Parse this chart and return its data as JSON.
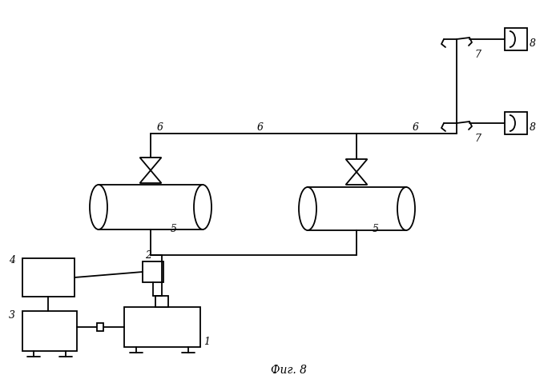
{
  "title": "Фиг. 8",
  "bg_color": "#ffffff",
  "line_color": "#000000",
  "line_width": 1.3,
  "fig_width": 6.99,
  "fig_height": 4.85,
  "dpi": 100
}
